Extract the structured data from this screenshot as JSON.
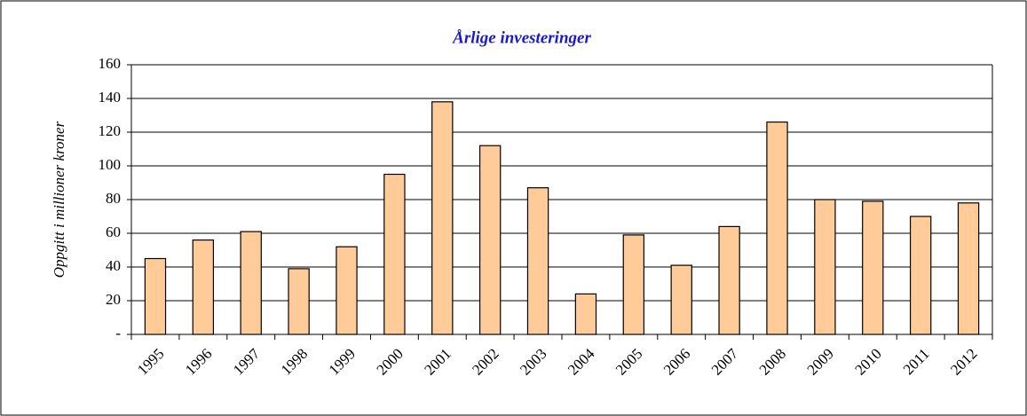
{
  "chart_data": {
    "type": "bar",
    "title": "Årlige investeringer",
    "y_label": "Oppgitt i millioner kroner",
    "categories": [
      "1995",
      "1996",
      "1997",
      "1998",
      "1999",
      "2000",
      "2001",
      "2002",
      "2003",
      "2004",
      "2005",
      "2006",
      "2007",
      "2008",
      "2009",
      "2010",
      "2011",
      "2012"
    ],
    "values": [
      45,
      56,
      61,
      39,
      52,
      95,
      138,
      112,
      87,
      24,
      59,
      41,
      64,
      126,
      80,
      79,
      70,
      78
    ],
    "color": "#ffcc99",
    "ylim": [
      0,
      160
    ],
    "yticks": [
      {
        "value": 0,
        "label": "-"
      },
      20,
      40,
      60,
      80,
      100,
      120,
      140,
      160
    ],
    "grid": true
  }
}
